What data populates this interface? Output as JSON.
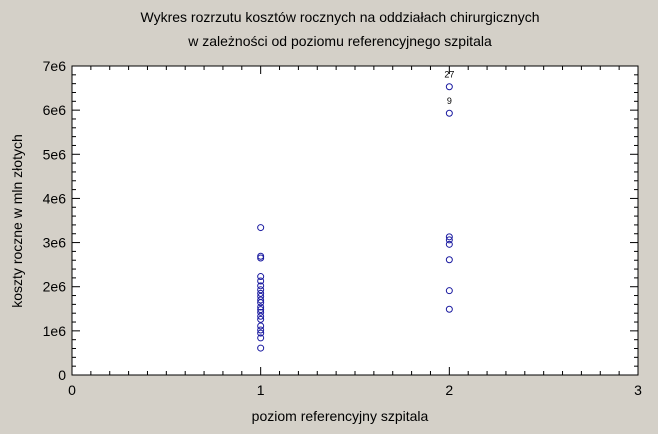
{
  "chart_data": {
    "type": "scatter",
    "title": [
      "Wykres rozrzutu kosztów rocznych na oddziałach chirurgicznych",
      "w zależności od poziomu referencyjnego szpitala"
    ],
    "xlabel": "poziom referencyjny szpitala",
    "ylabel": "koszty roczne w mln złotych",
    "xlim": [
      0,
      3
    ],
    "ylim": [
      0,
      7000000
    ],
    "xticks": [
      0,
      1,
      2,
      3
    ],
    "xtick_labels": [
      "0",
      "1",
      "2",
      "3"
    ],
    "yticks": [
      0,
      1000000,
      2000000,
      3000000,
      4000000,
      5000000,
      6000000,
      7000000
    ],
    "ytick_labels": [
      "0",
      "1e6",
      "2e6",
      "3e6",
      "4e6",
      "5e6",
      "6e6",
      "7e6"
    ],
    "grid": false,
    "marker": "circle",
    "colors": {
      "marker": "#1a1aa0",
      "plot_background": "#ffffff",
      "page_background": "#d4d0c8"
    },
    "points": [
      {
        "x": 1,
        "y": 3340000
      },
      {
        "x": 1,
        "y": 2690000
      },
      {
        "x": 1,
        "y": 2650000
      },
      {
        "x": 1,
        "y": 2230000
      },
      {
        "x": 1,
        "y": 2130000
      },
      {
        "x": 1,
        "y": 2020000
      },
      {
        "x": 1,
        "y": 1930000
      },
      {
        "x": 1,
        "y": 1850000
      },
      {
        "x": 1,
        "y": 1780000
      },
      {
        "x": 1,
        "y": 1700000
      },
      {
        "x": 1,
        "y": 1640000
      },
      {
        "x": 1,
        "y": 1540000
      },
      {
        "x": 1,
        "y": 1480000
      },
      {
        "x": 1,
        "y": 1420000
      },
      {
        "x": 1,
        "y": 1330000
      },
      {
        "x": 1,
        "y": 1260000
      },
      {
        "x": 1,
        "y": 1110000
      },
      {
        "x": 1,
        "y": 1020000
      },
      {
        "x": 1,
        "y": 950000
      },
      {
        "x": 1,
        "y": 840000
      },
      {
        "x": 1,
        "y": 610000
      },
      {
        "x": 2,
        "y": 6530000,
        "label": "27"
      },
      {
        "x": 2,
        "y": 5930000,
        "label": "9"
      },
      {
        "x": 2,
        "y": 3130000
      },
      {
        "x": 2,
        "y": 3060000
      },
      {
        "x": 2,
        "y": 2960000
      },
      {
        "x": 2,
        "y": 2610000
      },
      {
        "x": 2,
        "y": 1910000
      },
      {
        "x": 2,
        "y": 1490000
      }
    ]
  }
}
